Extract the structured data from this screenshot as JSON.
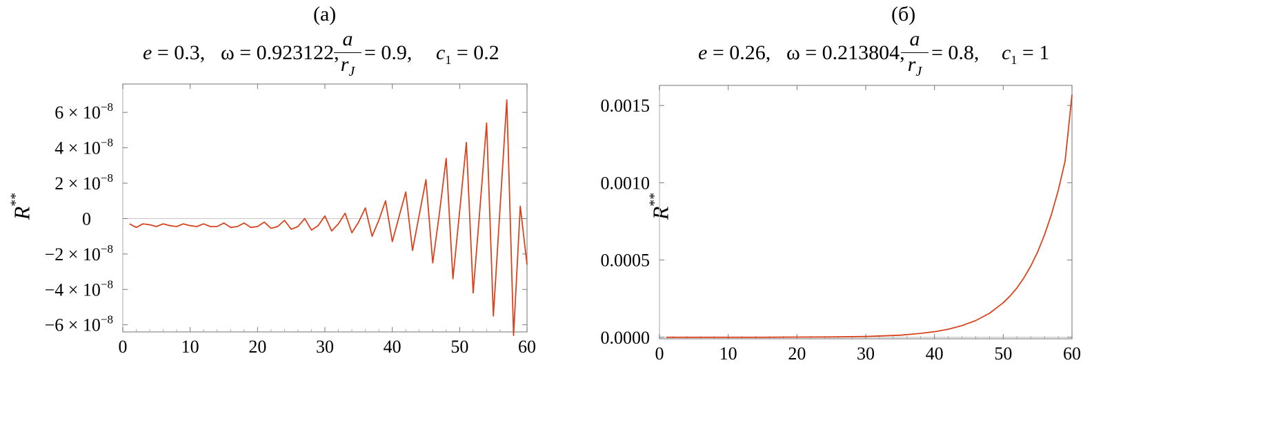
{
  "chart_data": [
    {
      "type": "line",
      "panel_label": "(a)",
      "params": {
        "e_name": "e",
        "e_value": "= 0.3,",
        "omega_name": "ω",
        "omega_value": "= 0.923122,",
        "frac_num": "a",
        "frac_den": "r",
        "frac_den_sub": "J",
        "ratio_value": "= 0.9,",
        "c_name": "c",
        "c_sub": "1",
        "c_value": "= 0.2"
      },
      "ylabel": "R",
      "ylabel_sup": "**",
      "xlim": [
        0,
        60
      ],
      "ylim": [
        -6.4e-08,
        7.6e-08
      ],
      "x_ticks": [
        0,
        10,
        20,
        30,
        40,
        50,
        60
      ],
      "y_ticks": [
        {
          "value": 6e-08,
          "mant": "6",
          "exp": "−8"
        },
        {
          "value": 4e-08,
          "mant": "4",
          "exp": "−8"
        },
        {
          "value": 2e-08,
          "mant": "2",
          "exp": "−8"
        },
        {
          "value": 0,
          "mant": "0",
          "exp": ""
        },
        {
          "value": -2e-08,
          "mant": "−2",
          "exp": "−8"
        },
        {
          "value": -4e-08,
          "mant": "−4",
          "exp": "−8"
        },
        {
          "value": -6e-08,
          "mant": "−6",
          "exp": "−8"
        }
      ],
      "x": [
        1,
        2,
        3,
        4,
        5,
        6,
        7,
        8,
        9,
        10,
        11,
        12,
        13,
        14,
        15,
        16,
        17,
        18,
        19,
        20,
        21,
        22,
        23,
        24,
        25,
        26,
        27,
        28,
        29,
        30,
        31,
        32,
        33,
        34,
        35,
        36,
        37,
        38,
        39,
        40,
        41,
        42,
        43,
        44,
        45,
        46,
        47,
        48,
        49,
        50,
        51,
        52,
        53,
        54,
        55,
        56,
        57,
        58,
        59,
        60
      ],
      "y": [
        -3e-09,
        -5e-09,
        -3e-09,
        -3.5e-09,
        -4.5e-09,
        -3e-09,
        -4e-09,
        -4.5e-09,
        -3e-09,
        -4e-09,
        -4.5e-09,
        -3e-09,
        -4.5e-09,
        -4.5e-09,
        -2.5e-09,
        -5e-09,
        -4.5e-09,
        -2.5e-09,
        -5e-09,
        -4.5e-09,
        -2e-09,
        -5.5e-09,
        -4.5e-09,
        -1e-09,
        -6e-09,
        -4.5e-09,
        0,
        -6.5e-09,
        -4e-09,
        1.5e-09,
        -7e-09,
        -3e-09,
        3e-09,
        -8e-09,
        -2e-09,
        6e-09,
        -1e-08,
        -1e-09,
        1e-08,
        -1.3e-08,
        1e-09,
        1.5e-08,
        -1.8e-08,
        2e-09,
        2.2e-08,
        -2.5e-08,
        3e-09,
        3.4e-08,
        -3.4e-08,
        4e-09,
        4.3e-08,
        -4.2e-08,
        5e-09,
        5.4e-08,
        -5.5e-08,
        6e-09,
        6.7e-08,
        -6.6e-08,
        7e-09,
        -2.6e-08
      ]
    },
    {
      "type": "line",
      "panel_label": "(б)",
      "params": {
        "e_name": "e",
        "e_value": "= 0.26,",
        "omega_name": "ω",
        "omega_value": "= 0.213804,",
        "frac_num": "a",
        "frac_den": "r",
        "frac_den_sub": "J",
        "ratio_value": "= 0.8,",
        "c_name": "c",
        "c_sub": "1",
        "c_value": "=  1"
      },
      "ylabel": "R",
      "ylabel_sup": "**",
      "xlim": [
        0,
        60
      ],
      "ylim": [
        -1e-05,
        0.00163
      ],
      "x_ticks": [
        0,
        10,
        20,
        30,
        40,
        50,
        60
      ],
      "y_ticks": [
        {
          "value": 0.0015,
          "label": "0.0015"
        },
        {
          "value": 0.001,
          "label": "0.0010"
        },
        {
          "value": 0.0005,
          "label": "0.0005"
        },
        {
          "value": 0.0,
          "label": "0.0000"
        }
      ],
      "x": [
        1,
        5,
        10,
        15,
        20,
        25,
        30,
        35,
        38,
        40,
        42,
        44,
        46,
        48,
        50,
        51,
        52,
        53,
        54,
        55,
        56,
        57,
        58,
        59,
        60
      ],
      "y": [
        0,
        0,
        0,
        0,
        1e-06,
        2e-06,
        5e-06,
        1.3e-05,
        2.5e-05,
        3.6e-05,
        5.2e-05,
        7.5e-05,
        0.000108,
        0.000155,
        0.000223,
        0.000267,
        0.00032,
        0.000384,
        0.00046,
        0.000552,
        0.000662,
        0.000793,
        0.000951,
        0.00114,
        0.00157
      ]
    }
  ]
}
